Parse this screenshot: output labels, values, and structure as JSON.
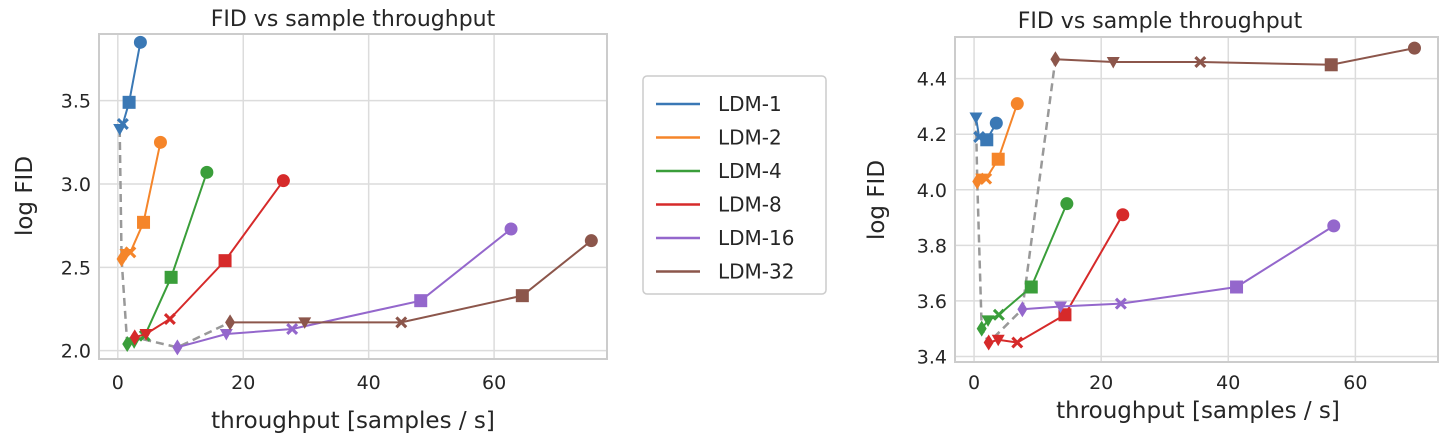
{
  "chart_data": [
    {
      "type": "line",
      "title": "FID vs sample throughput",
      "xlabel": "throughput [samples / s]",
      "ylabel": "log FID",
      "xlim": [
        -3,
        78
      ],
      "ylim": [
        1.95,
        3.9
      ],
      "xticks": [
        "0",
        "20",
        "40",
        "60"
      ],
      "yticks": [
        "2.0",
        "2.5",
        "3.0",
        "3.5"
      ],
      "xtick_values": [
        0,
        20,
        40,
        60
      ],
      "ytick_values": [
        2.0,
        2.5,
        3.0,
        3.5
      ],
      "grid": true,
      "series": [
        {
          "name": "LDM-1",
          "color": "#3a78b5",
          "x": [
            0.3,
            0.8,
            1.8,
            3.6
          ],
          "y": [
            3.33,
            3.36,
            3.49,
            3.85
          ],
          "markers": [
            "tri-down",
            "x",
            "square",
            "circle"
          ]
        },
        {
          "name": "LDM-2",
          "color": "#f5852a",
          "x": [
            0.6,
            1.3,
            2.0,
            4.1,
            6.8
          ],
          "y": [
            2.55,
            2.58,
            2.59,
            2.77,
            3.25
          ],
          "markers": [
            "diamond",
            "tri-down",
            "x",
            "square",
            "circle"
          ]
        },
        {
          "name": "LDM-4",
          "color": "#3a9e3a",
          "x": [
            1.5,
            2.6,
            4.3,
            8.5,
            14.2
          ],
          "y": [
            2.04,
            2.05,
            2.09,
            2.44,
            3.07
          ],
          "markers": [
            "diamond",
            "tri-down",
            "x",
            "square",
            "circle"
          ]
        },
        {
          "name": "LDM-8",
          "color": "#d62a2a",
          "x": [
            2.7,
            4.5,
            8.3,
            17.1,
            26.4
          ],
          "y": [
            2.08,
            2.1,
            2.19,
            2.54,
            3.02
          ],
          "markers": [
            "diamond",
            "tri-down",
            "x",
            "square",
            "circle"
          ]
        },
        {
          "name": "LDM-16",
          "color": "#9467cc",
          "x": [
            9.5,
            17.3,
            27.8,
            48.3,
            62.7
          ],
          "y": [
            2.02,
            2.1,
            2.13,
            2.3,
            2.73
          ],
          "markers": [
            "diamond",
            "tri-down",
            "x",
            "square",
            "circle"
          ]
        },
        {
          "name": "LDM-32",
          "color": "#8c564b",
          "x": [
            17.9,
            29.8,
            45.2,
            64.5,
            75.5
          ],
          "y": [
            2.17,
            2.17,
            2.17,
            2.33,
            2.66
          ],
          "markers": [
            "diamond",
            "tri-down",
            "x",
            "square",
            "circle"
          ]
        }
      ],
      "dashed_path": {
        "color": "#999999",
        "x": [
          0.3,
          0.6,
          1.5,
          2.7,
          9.5,
          17.9
        ],
        "y": [
          3.33,
          2.55,
          2.04,
          2.08,
          2.02,
          2.17
        ]
      }
    },
    {
      "type": "line",
      "title": "FID vs sample throughput",
      "xlabel": "throughput [samples / s]",
      "ylabel": "log FID",
      "xlim": [
        -3,
        73
      ],
      "ylim": [
        3.38,
        4.55
      ],
      "xticks": [
        "0",
        "20",
        "40",
        "60"
      ],
      "yticks": [
        "3.4",
        "3.6",
        "3.8",
        "4.0",
        "4.2",
        "4.4"
      ],
      "xtick_values": [
        0,
        20,
        40,
        60
      ],
      "ytick_values": [
        3.4,
        3.6,
        3.8,
        4.0,
        4.2,
        4.4
      ],
      "grid": true,
      "series": [
        {
          "name": "LDM-1",
          "color": "#3a78b5",
          "x": [
            0.3,
            0.8,
            2.0,
            3.5
          ],
          "y": [
            4.26,
            4.19,
            4.18,
            4.24
          ],
          "markers": [
            "tri-down",
            "x",
            "square",
            "circle"
          ]
        },
        {
          "name": "LDM-2",
          "color": "#f5852a",
          "x": [
            0.5,
            1.2,
            1.9,
            3.8,
            6.8
          ],
          "y": [
            4.03,
            4.04,
            4.04,
            4.11,
            4.31
          ],
          "markers": [
            "diamond",
            "tri-down",
            "x",
            "square",
            "circle"
          ]
        },
        {
          "name": "LDM-4",
          "color": "#3a9e3a",
          "x": [
            1.2,
            2.2,
            3.9,
            9.0,
            14.6
          ],
          "y": [
            3.5,
            3.53,
            3.55,
            3.65,
            3.95
          ],
          "markers": [
            "diamond",
            "tri-down",
            "x",
            "square",
            "circle"
          ]
        },
        {
          "name": "LDM-8",
          "color": "#d62a2a",
          "x": [
            2.3,
            3.8,
            6.8,
            14.3,
            23.4
          ],
          "y": [
            3.45,
            3.46,
            3.45,
            3.55,
            3.91
          ],
          "markers": [
            "diamond",
            "tri-down",
            "x",
            "square",
            "circle"
          ]
        },
        {
          "name": "LDM-16",
          "color": "#9467cc",
          "x": [
            7.6,
            13.6,
            23.1,
            41.3,
            56.6
          ],
          "y": [
            3.57,
            3.58,
            3.59,
            3.65,
            3.87
          ],
          "markers": [
            "diamond",
            "tri-down",
            "x",
            "square",
            "circle"
          ]
        },
        {
          "name": "LDM-32",
          "color": "#8c564b",
          "x": [
            12.8,
            21.9,
            35.6,
            56.2,
            69.3
          ],
          "y": [
            4.47,
            4.46,
            4.46,
            4.45,
            4.51
          ],
          "markers": [
            "diamond",
            "tri-down",
            "x",
            "square",
            "circle"
          ]
        }
      ],
      "dashed_path": {
        "color": "#999999",
        "x": [
          0.3,
          0.5,
          1.2,
          2.3,
          7.6,
          12.8
        ],
        "y": [
          4.26,
          4.03,
          3.5,
          3.45,
          3.57,
          4.47
        ]
      }
    }
  ],
  "legend": {
    "placement": "between-panels",
    "items": [
      {
        "label": "LDM-1",
        "color": "#3a78b5"
      },
      {
        "label": "LDM-2",
        "color": "#f5852a"
      },
      {
        "label": "LDM-4",
        "color": "#3a9e3a"
      },
      {
        "label": "LDM-8",
        "color": "#d62a2a"
      },
      {
        "label": "LDM-16",
        "color": "#9467cc"
      },
      {
        "label": "LDM-32",
        "color": "#8c564b"
      }
    ]
  }
}
